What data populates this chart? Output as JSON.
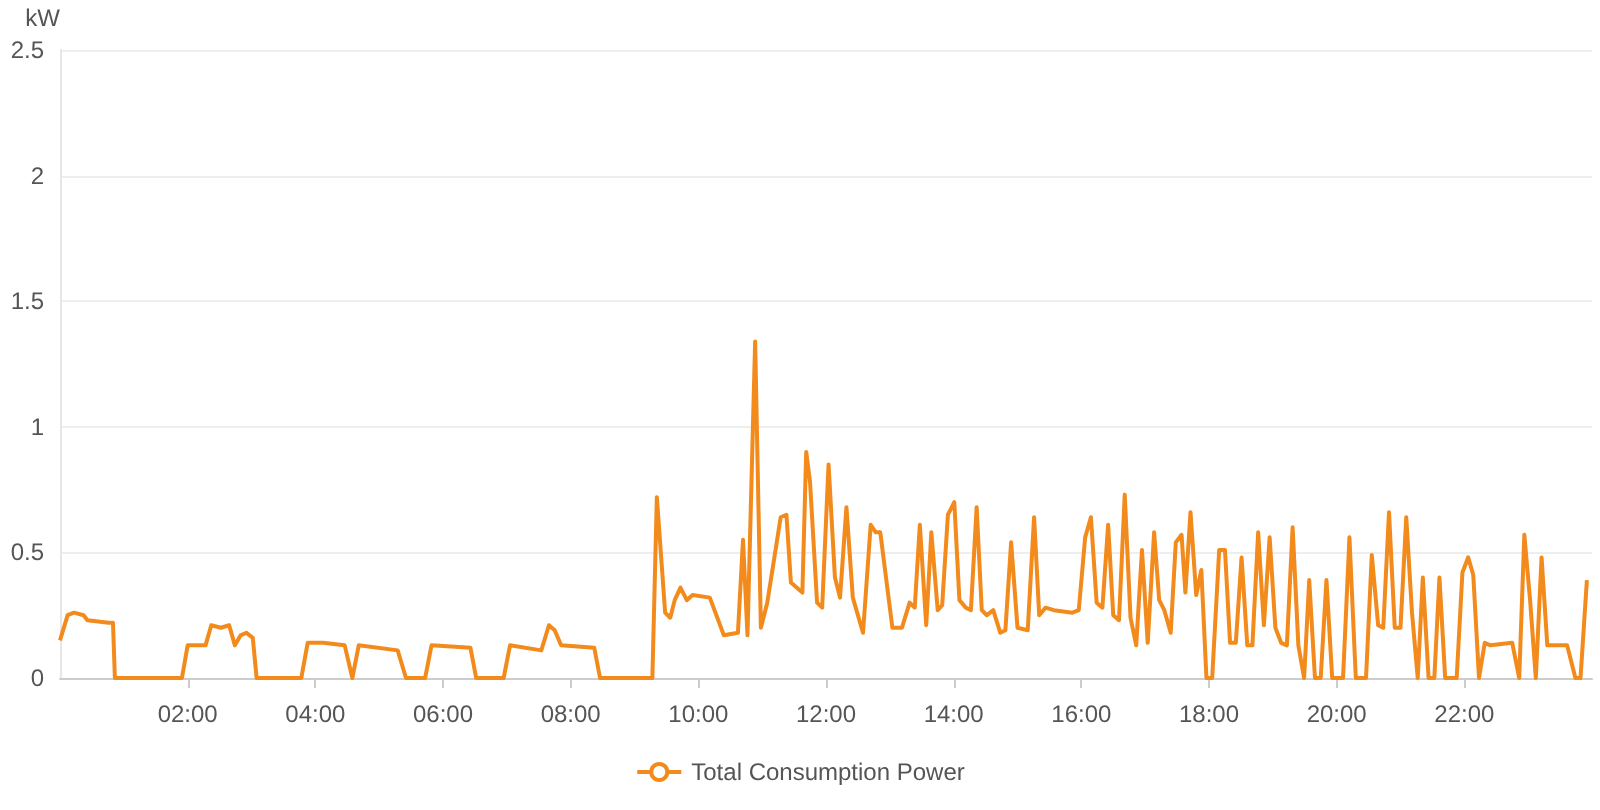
{
  "chart_data": {
    "type": "line",
    "ylabel": "kW",
    "xlim": [
      0,
      24
    ],
    "xticks": [
      {
        "value": 2,
        "label": "02:00"
      },
      {
        "value": 4,
        "label": "04:00"
      },
      {
        "value": 6,
        "label": "06:00"
      },
      {
        "value": 8,
        "label": "08:00"
      },
      {
        "value": 10,
        "label": "10:00"
      },
      {
        "value": 12,
        "label": "12:00"
      },
      {
        "value": 14,
        "label": "14:00"
      },
      {
        "value": 16,
        "label": "16:00"
      },
      {
        "value": 18,
        "label": "18:00"
      },
      {
        "value": 20,
        "label": "20:00"
      },
      {
        "value": 22,
        "label": "22:00"
      }
    ],
    "ylim": [
      0,
      2.5
    ],
    "yticks": [
      0,
      0.5,
      1,
      1.5,
      2,
      2.5
    ],
    "grid": "y",
    "legend": "bottom",
    "series": [
      {
        "name": "Total Consumption Power",
        "color": "#f28a1c",
        "x": [
          0,
          0.12,
          0.22,
          0.37,
          0.43,
          0.76,
          0.83,
          0.86,
          1.91,
          2.0,
          2.28,
          2.37,
          2.52,
          2.65,
          2.74,
          2.83,
          2.92,
          3.02,
          3.08,
          3.78,
          3.88,
          4.12,
          4.46,
          4.58,
          4.68,
          5.29,
          5.42,
          5.72,
          5.82,
          6.43,
          6.52,
          6.95,
          7.05,
          7.54,
          7.66,
          7.75,
          7.85,
          8.37,
          8.46,
          9.28,
          9.35,
          9.48,
          9.56,
          9.63,
          9.72,
          9.82,
          9.91,
          10.18,
          10.4,
          10.62,
          10.7,
          10.77,
          10.89,
          10.98,
          11.08,
          11.29,
          11.38,
          11.45,
          11.63,
          11.69,
          11.75,
          11.86,
          11.94,
          12.04,
          12.14,
          12.22,
          12.32,
          12.42,
          12.58,
          12.7,
          12.78,
          12.85,
          13.04,
          13.19,
          13.31,
          13.39,
          13.47,
          13.57,
          13.65,
          13.75,
          13.82,
          13.91,
          14.01,
          14.09,
          14.19,
          14.27,
          14.36,
          14.44,
          14.52,
          14.62,
          14.73,
          14.81,
          14.9,
          15.0,
          15.16,
          15.26,
          15.34,
          15.44,
          15.57,
          15.86,
          15.96,
          16.06,
          16.15,
          16.24,
          16.33,
          16.42,
          16.5,
          16.59,
          16.68,
          16.77,
          16.86,
          16.95,
          17.04,
          17.14,
          17.22,
          17.3,
          17.4,
          17.48,
          17.57,
          17.63,
          17.71,
          17.8,
          17.88,
          17.96,
          18.05,
          18.16,
          18.25,
          18.33,
          18.42,
          18.51,
          18.6,
          18.68,
          18.77,
          18.86,
          18.95,
          19.04,
          19.13,
          19.22,
          19.31,
          19.4,
          19.49,
          19.57,
          19.66,
          19.75,
          19.84,
          19.93,
          20.1,
          20.2,
          20.3,
          20.46,
          20.55,
          20.65,
          20.73,
          20.82,
          20.91,
          21.0,
          21.09,
          21.18,
          21.27,
          21.35,
          21.44,
          21.53,
          21.61,
          21.7,
          21.88,
          21.97,
          22.06,
          22.14,
          22.23,
          22.32,
          22.41,
          22.75,
          22.86,
          22.94,
          23.03,
          23.12,
          23.21,
          23.3,
          23.61,
          23.74,
          23.82,
          23.92
        ],
        "values": [
          0.15,
          0.25,
          0.26,
          0.25,
          0.23,
          0.22,
          0.22,
          0,
          0,
          0.13,
          0.13,
          0.21,
          0.2,
          0.21,
          0.13,
          0.17,
          0.18,
          0.16,
          0,
          0,
          0.14,
          0.14,
          0.13,
          0,
          0.13,
          0.11,
          0,
          0,
          0.13,
          0.12,
          0,
          0,
          0.13,
          0.11,
          0.21,
          0.19,
          0.13,
          0.12,
          0,
          0,
          0.72,
          0.26,
          0.24,
          0.31,
          0.36,
          0.31,
          0.33,
          0.32,
          0.17,
          0.18,
          0.55,
          0.17,
          1.34,
          0.2,
          0.3,
          0.64,
          0.65,
          0.38,
          0.34,
          0.9,
          0.78,
          0.3,
          0.28,
          0.85,
          0.4,
          0.32,
          0.68,
          0.32,
          0.18,
          0.61,
          0.58,
          0.58,
          0.2,
          0.2,
          0.3,
          0.28,
          0.61,
          0.21,
          0.58,
          0.27,
          0.29,
          0.65,
          0.7,
          0.31,
          0.28,
          0.27,
          0.68,
          0.27,
          0.25,
          0.27,
          0.18,
          0.19,
          0.54,
          0.2,
          0.19,
          0.64,
          0.25,
          0.28,
          0.27,
          0.26,
          0.27,
          0.56,
          0.64,
          0.3,
          0.28,
          0.61,
          0.25,
          0.23,
          0.73,
          0.24,
          0.13,
          0.51,
          0.14,
          0.58,
          0.31,
          0.27,
          0.18,
          0.54,
          0.57,
          0.34,
          0.66,
          0.33,
          0.43,
          0,
          0,
          0.51,
          0.51,
          0.14,
          0.14,
          0.48,
          0.13,
          0.13,
          0.58,
          0.21,
          0.56,
          0.2,
          0.14,
          0.13,
          0.6,
          0.13,
          0,
          0.39,
          0,
          0,
          0.39,
          0,
          0,
          0.56,
          0,
          0,
          0.49,
          0.21,
          0.2,
          0.66,
          0.2,
          0.2,
          0.64,
          0.26,
          0,
          0.4,
          0,
          0,
          0.4,
          0,
          0,
          0.42,
          0.48,
          0.41,
          0,
          0.14,
          0.13,
          0.14,
          0,
          0.57,
          0.31,
          0,
          0.48,
          0.13,
          0.13,
          0,
          0,
          0.39
        ]
      }
    ]
  }
}
